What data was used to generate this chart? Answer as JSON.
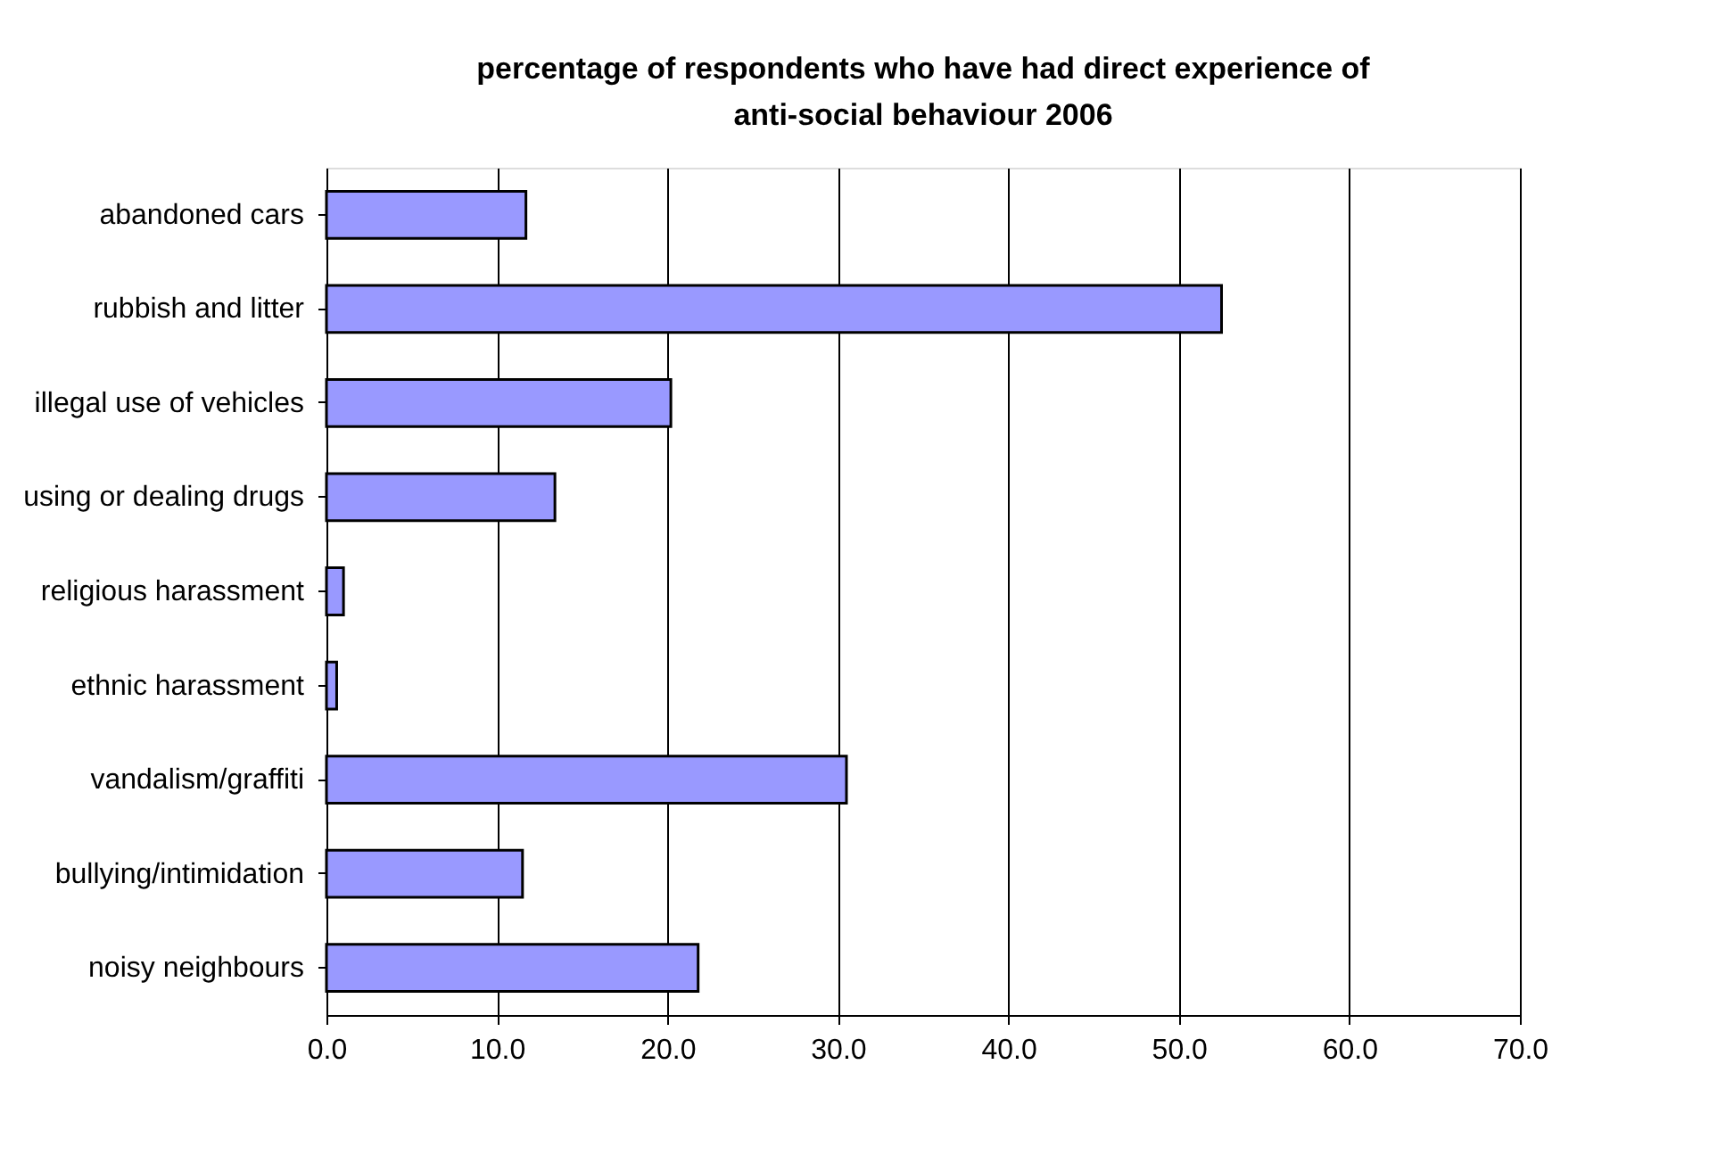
{
  "chart_data": {
    "type": "bar",
    "orientation": "horizontal",
    "title": "percentage of respondents who have had direct experience of anti-social behaviour 2006",
    "categories": [
      "abandoned cars",
      "rubbish and litter",
      "illegal use of vehicles",
      "using or dealing drugs",
      "religious harassment",
      "ethnic harassment",
      "vandalism/graffiti",
      "bullying/intimidation",
      "noisy neighbours"
    ],
    "values": [
      11.7,
      52.5,
      20.2,
      13.4,
      1.0,
      0.6,
      30.5,
      11.5,
      21.8
    ],
    "color": "#9999ff",
    "xlim": [
      0,
      70
    ],
    "xticks": [
      {
        "value": 0,
        "label": "0.0"
      },
      {
        "value": 10,
        "label": "10.0"
      },
      {
        "value": 20,
        "label": "20.0"
      },
      {
        "value": 30,
        "label": "30.0"
      },
      {
        "value": 40,
        "label": "40.0"
      },
      {
        "value": 50,
        "label": "50.0"
      },
      {
        "value": 60,
        "label": "60.0"
      },
      {
        "value": 70,
        "label": "70.0"
      }
    ],
    "grid": "x",
    "legend": false
  }
}
